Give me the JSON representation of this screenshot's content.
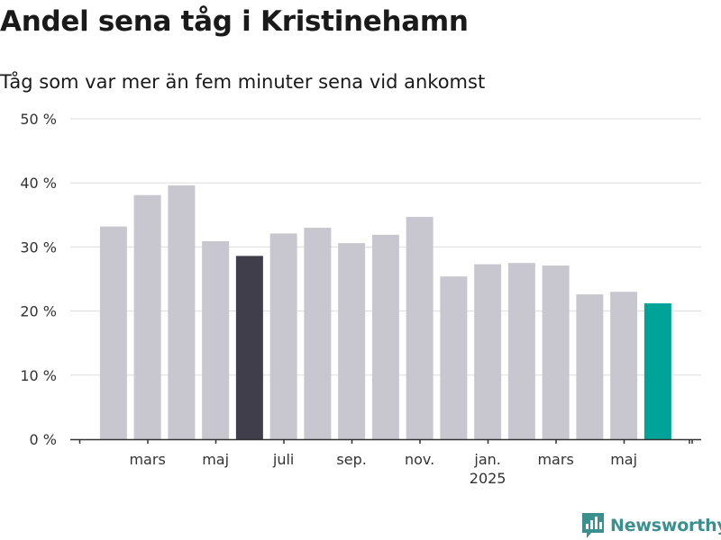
{
  "header": {
    "title": "Andel sena tåg i Kristinehamn",
    "subtitle": "Tåg som var mer än fem minuter sena vid ankomst"
  },
  "brand": {
    "name": "Newsworthy",
    "icon": "newsworthy-logo-icon",
    "color": "#3a8f8f"
  },
  "colors": {
    "default": "#c8c7cf",
    "highlight": "#3f3e4a",
    "latest": "#00a398",
    "grid": "#dddddd"
  },
  "chart_data": {
    "type": "bar",
    "title": "Andel sena tåg i Kristinehamn",
    "subtitle": "Tåg som var mer än fem minuter sena vid ankomst",
    "ylim": [
      0,
      50
    ],
    "yticks": [
      0,
      10,
      20,
      30,
      40,
      50
    ],
    "ytick_labels": [
      "0 %",
      "10 %",
      "20 %",
      "30 %",
      "40 %",
      "50 %"
    ],
    "grid": true,
    "categories": [
      "2024-02",
      "2024-03",
      "2024-04",
      "2024-05",
      "2024-06",
      "2024-07",
      "2024-08",
      "2024-09",
      "2024-10",
      "2024-11",
      "2024-12",
      "2025-01",
      "2025-02",
      "2025-03",
      "2025-04",
      "2025-05",
      "2025-06"
    ],
    "values": [
      33.2,
      38.1,
      39.6,
      30.9,
      28.6,
      32.1,
      33.0,
      30.6,
      31.9,
      34.7,
      25.4,
      27.3,
      27.5,
      27.1,
      22.6,
      23.0,
      21.2
    ],
    "bar_colors": [
      "default",
      "default",
      "default",
      "default",
      "highlight",
      "default",
      "default",
      "default",
      "default",
      "default",
      "default",
      "default",
      "default",
      "default",
      "default",
      "default",
      "latest"
    ],
    "xtick_labels": [
      {
        "category": "2024-03",
        "label": "mars"
      },
      {
        "category": "2024-05",
        "label": "maj"
      },
      {
        "category": "2024-07",
        "label": "juli"
      },
      {
        "category": "2024-09",
        "label": "sep."
      },
      {
        "category": "2024-11",
        "label": "nov."
      },
      {
        "category": "2025-01",
        "label": "jan.",
        "sublabel": "2025"
      },
      {
        "category": "2025-03",
        "label": "mars"
      },
      {
        "category": "2025-05",
        "label": "maj"
      }
    ]
  }
}
